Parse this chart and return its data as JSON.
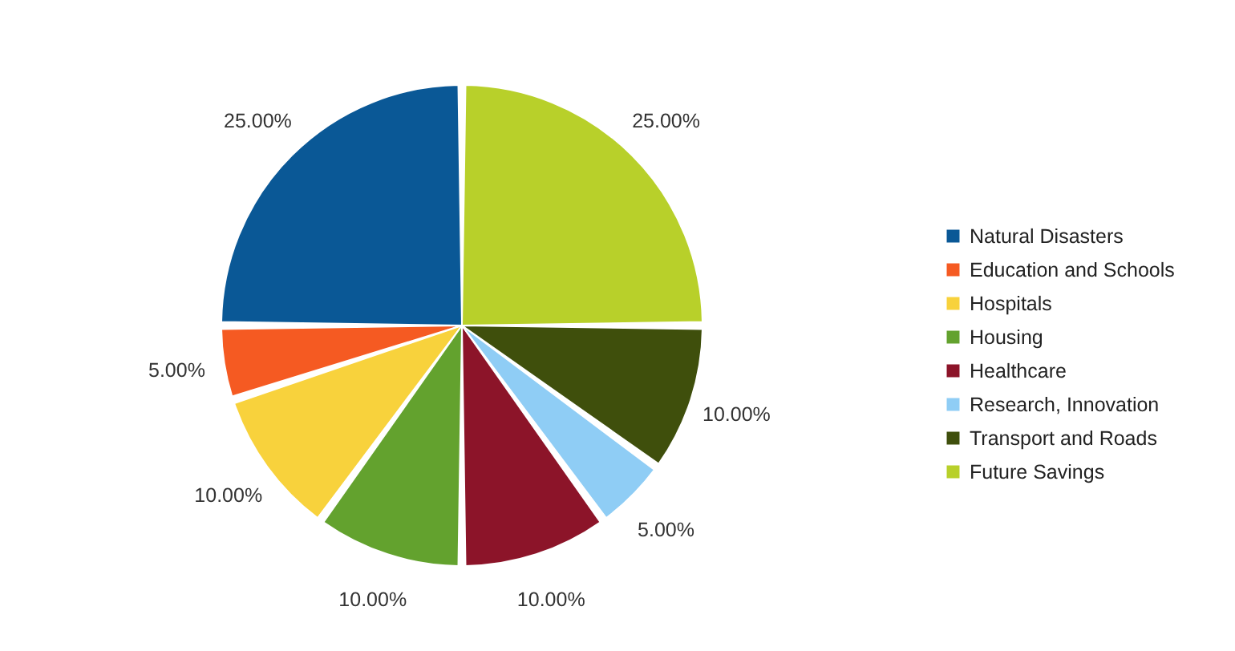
{
  "chart_data": {
    "type": "pie",
    "categories": [
      "Natural Disasters",
      "Education and Schools",
      "Hospitals",
      "Housing",
      "Healthcare",
      "Research, Innovation",
      "Transport and Roads",
      "Future Savings"
    ],
    "values": [
      25,
      5,
      10,
      10,
      10,
      5,
      10,
      25
    ],
    "colors": [
      "#0a5896",
      "#f55a22",
      "#f8d23c",
      "#63a22e",
      "#8c1429",
      "#8fcdf5",
      "#3f4f0c",
      "#b8d02a"
    ],
    "value_labels": [
      "25.00%",
      "5.00%",
      "10.00%",
      "10.00%",
      "10.00%",
      "5.00%",
      "10.00%",
      "25.00%"
    ],
    "legend": "right"
  }
}
